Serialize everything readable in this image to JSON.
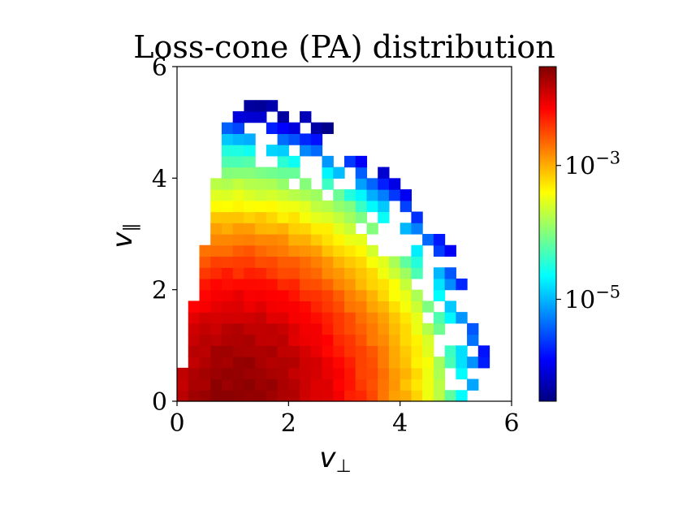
{
  "chart_data": {
    "type": "heatmap",
    "title": "Loss-cone (PA) distribution",
    "xlabel_symbol": "v",
    "xlabel_sub": "⊥",
    "ylabel_symbol": "v",
    "ylabel_sub": "∥",
    "xlim": [
      0,
      6
    ],
    "ylim": [
      0,
      6
    ],
    "xticks": [
      0,
      2,
      4,
      6
    ],
    "yticks": [
      0,
      2,
      4,
      6
    ],
    "grid": false,
    "bins": [
      30,
      30
    ],
    "colormap": "jet",
    "color_scale": "log",
    "colorbar": {
      "vmin": 3e-07,
      "vmax": 0.03,
      "ticks": [
        {
          "base": "10",
          "exp": "−3",
          "value": 0.001
        },
        {
          "base": "10",
          "exp": "−5",
          "value": 1e-05
        }
      ]
    },
    "distribution_model": "peak density at (v⊥≈1.0, v∥≈0.1) ≈ 2.5e-2, falling to ≈5e-7 at the outer boundary; counts vanish for v⊥ < v∥·tan(α) with loss-cone α ≈ 10°; empty bins beyond radius ≈ 5.3 and randomly at the outer edge"
  }
}
